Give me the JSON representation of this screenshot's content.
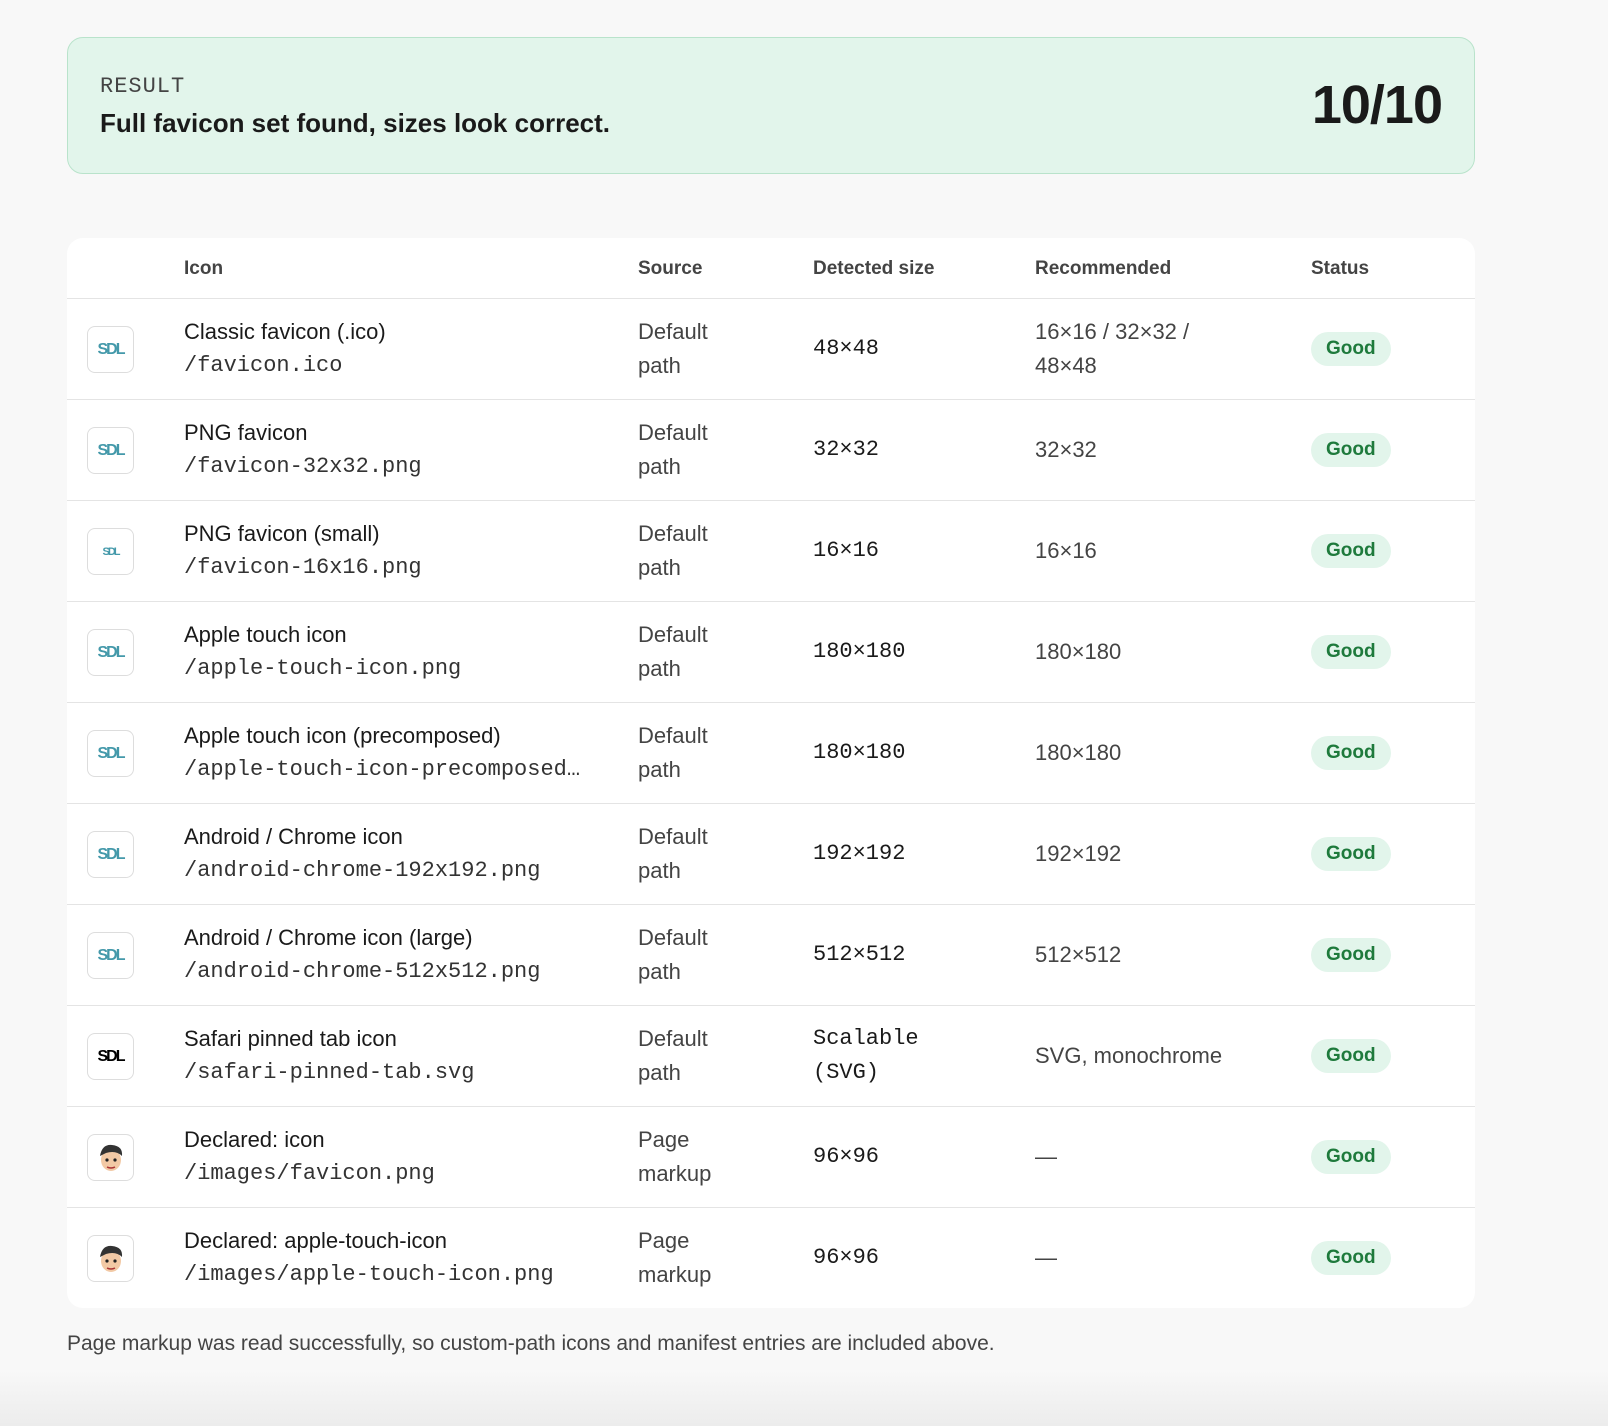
{
  "result": {
    "label": "RESULT",
    "message": "Full favicon set found, sizes look correct.",
    "score": "10/10"
  },
  "table": {
    "headers": [
      "Icon",
      "Source",
      "Detected size",
      "Recommended",
      "Status"
    ],
    "rows": [
      {
        "thumb": "SDL",
        "name": "Classic favicon (.ico)",
        "path": "/favicon.ico",
        "source": "Default path",
        "detected": "48×48",
        "recommended": "16×16 / 32×32 / 48×48",
        "status": "Good"
      },
      {
        "thumb": "SDL",
        "name": "PNG favicon",
        "path": "/favicon-32x32.png",
        "source": "Default path",
        "detected": "32×32",
        "recommended": "32×32",
        "status": "Good"
      },
      {
        "thumb": "SDL",
        "name": "PNG favicon (small)",
        "path": "/favicon-16x16.png",
        "source": "Default path",
        "detected": "16×16",
        "recommended": "16×16",
        "status": "Good"
      },
      {
        "thumb": "SDL",
        "name": "Apple touch icon",
        "path": "/apple-touch-icon.png",
        "source": "Default path",
        "detected": "180×180",
        "recommended": "180×180",
        "status": "Good"
      },
      {
        "thumb": "SDL",
        "name": "Apple touch icon (precomposed)",
        "path": "/apple-touch-icon-precomposed…",
        "source": "Default path",
        "detected": "180×180",
        "recommended": "180×180",
        "status": "Good"
      },
      {
        "thumb": "SDL",
        "name": "Android / Chrome icon",
        "path": "/android-chrome-192x192.png",
        "source": "Default path",
        "detected": "192×192",
        "recommended": "192×192",
        "status": "Good"
      },
      {
        "thumb": "SDL",
        "name": "Android / Chrome icon (large)",
        "path": "/android-chrome-512x512.png",
        "source": "Default path",
        "detected": "512×512",
        "recommended": "512×512",
        "status": "Good"
      },
      {
        "thumb": "SDL",
        "name": "Safari pinned tab icon",
        "path": "/safari-pinned-tab.svg",
        "source": "Default path",
        "detected": "Scalable (SVG)",
        "recommended": "SVG, monochrome",
        "status": "Good"
      },
      {
        "name": "Declared: icon",
        "path": "/images/favicon.png",
        "source": "Page markup",
        "detected": "96×96",
        "recommended": "—",
        "status": "Good"
      },
      {
        "name": "Declared: apple-touch-icon",
        "path": "/images/apple-touch-icon.png",
        "source": "Page markup",
        "detected": "96×96",
        "recommended": "—",
        "status": "Good"
      }
    ]
  },
  "footer": "Page markup was read successfully, so custom-path icons and manifest entries are included above."
}
